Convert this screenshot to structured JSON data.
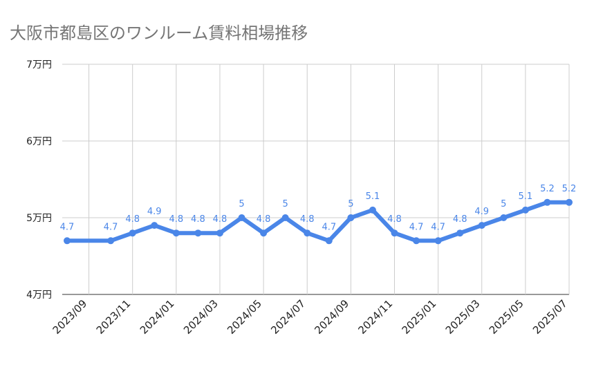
{
  "chart_data": {
    "type": "line",
    "title": "大阪市都島区のワンルーム賃料相場推移",
    "xlabel": "",
    "ylabel": "",
    "ylim": [
      4,
      7
    ],
    "y_ticks": [
      {
        "value": 4,
        "label": "4万円"
      },
      {
        "value": 5,
        "label": "5万円"
      },
      {
        "value": 6,
        "label": "6万円"
      },
      {
        "value": 7,
        "label": "7万円"
      }
    ],
    "x": [
      "2023/08",
      "2023/09",
      "2023/10",
      "2023/11",
      "2023/12",
      "2024/01",
      "2024/02",
      "2024/03",
      "2024/04",
      "2024/05",
      "2024/06",
      "2024/07",
      "2024/08",
      "2024/09",
      "2024/10",
      "2024/11",
      "2024/12",
      "2025/01",
      "2025/02",
      "2025/03",
      "2025/04",
      "2025/05",
      "2025/06",
      "2025/07"
    ],
    "x_tick_labels": [
      "2023/09",
      "2023/11",
      "2024/01",
      "2024/03",
      "2024/05",
      "2024/07",
      "2024/09",
      "2024/11",
      "2025/01",
      "2025/03",
      "2025/05",
      "2025/07"
    ],
    "series": [
      {
        "color": "#4a86e8",
        "values": [
          4.7,
          null,
          4.7,
          4.8,
          4.9,
          4.8,
          4.8,
          4.8,
          5,
          4.8,
          5,
          4.8,
          4.7,
          5,
          5.1,
          4.8,
          4.7,
          4.7,
          4.8,
          4.9,
          5,
          5.1,
          5.2,
          5.2
        ],
        "data_labels": [
          "4.7",
          "",
          "4.7",
          "4.8",
          "4.9",
          "4.8",
          "4.8",
          "4.8",
          "5",
          "4.8",
          "5",
          "4.8",
          "4.7",
          "5",
          "5.1",
          "4.8",
          "4.7",
          "4.7",
          "4.8",
          "4.9",
          "5",
          "5.1",
          "5.2",
          "5.2"
        ]
      }
    ],
    "grid": true,
    "legend": "none"
  }
}
